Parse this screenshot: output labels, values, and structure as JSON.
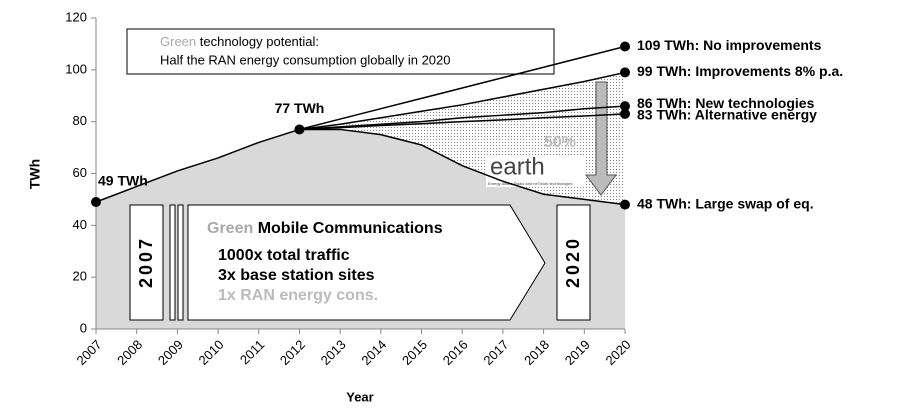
{
  "chart_data": {
    "type": "line",
    "categories": [
      "2007",
      "2008",
      "2009",
      "2010",
      "2011",
      "2012",
      "2013",
      "2014",
      "2015",
      "2016",
      "2017",
      "2018",
      "2019",
      "2020"
    ],
    "xlabel": "Year",
    "ylabel": "TWh",
    "ylim": [
      0,
      120
    ],
    "yticks": [
      0,
      20,
      40,
      60,
      80,
      100,
      120
    ],
    "area_color": "#d9d9d9",
    "base": {
      "values": [
        49,
        55,
        61,
        66,
        72,
        77,
        null,
        null,
        null,
        null,
        null,
        null,
        null,
        null
      ],
      "value_labels": [
        "49 TWh",
        null,
        null,
        null,
        null,
        "77 TWh",
        null,
        null,
        null,
        null,
        null,
        null,
        null,
        null
      ]
    },
    "series": [
      {
        "label": "109 TWh: No improvements",
        "color": "#000000",
        "values": [
          null,
          null,
          null,
          null,
          null,
          77,
          81,
          85,
          89,
          93,
          97,
          101,
          105,
          109
        ]
      },
      {
        "label": "99 TWh: Improvements 8% p.a.",
        "color": "#000000",
        "values": [
          null,
          null,
          null,
          null,
          null,
          77,
          79,
          81.5,
          84,
          86.5,
          89.5,
          92.5,
          95.5,
          99
        ]
      },
      {
        "label": "86 TWh: New technologies",
        "color": "#000000",
        "values": [
          null,
          null,
          null,
          null,
          null,
          77,
          78,
          79,
          80,
          81.5,
          82.5,
          83.5,
          85,
          86
        ]
      },
      {
        "label": "83 TWh: Alternative energy",
        "color": "#000000",
        "values": [
          null,
          null,
          null,
          null,
          null,
          77,
          77.7,
          78.5,
          79.2,
          80,
          80.7,
          81.5,
          82.2,
          83
        ]
      },
      {
        "label": "48 TWh: Large swap of eq.",
        "color": "#000000",
        "values": [
          null,
          null,
          null,
          null,
          null,
          77,
          77,
          75,
          71,
          63,
          57,
          52,
          50,
          48
        ]
      }
    ],
    "potential_box": {
      "green": "Green",
      "line1": " technology potential:",
      "line2": "Half the RAN energy consumption globally in 2020"
    },
    "mobile_box": {
      "green": "Green",
      "title": " Mobile Communications",
      "line1": "1000x total traffic",
      "line2": "3x base station sites",
      "line3": "1x RAN energy cons."
    },
    "start_year": "2007",
    "end_year": "2020",
    "reduction": "50%",
    "logo": "earth",
    "logo_sub": "Energy Aware Radio and neTwork tecHnologies"
  }
}
